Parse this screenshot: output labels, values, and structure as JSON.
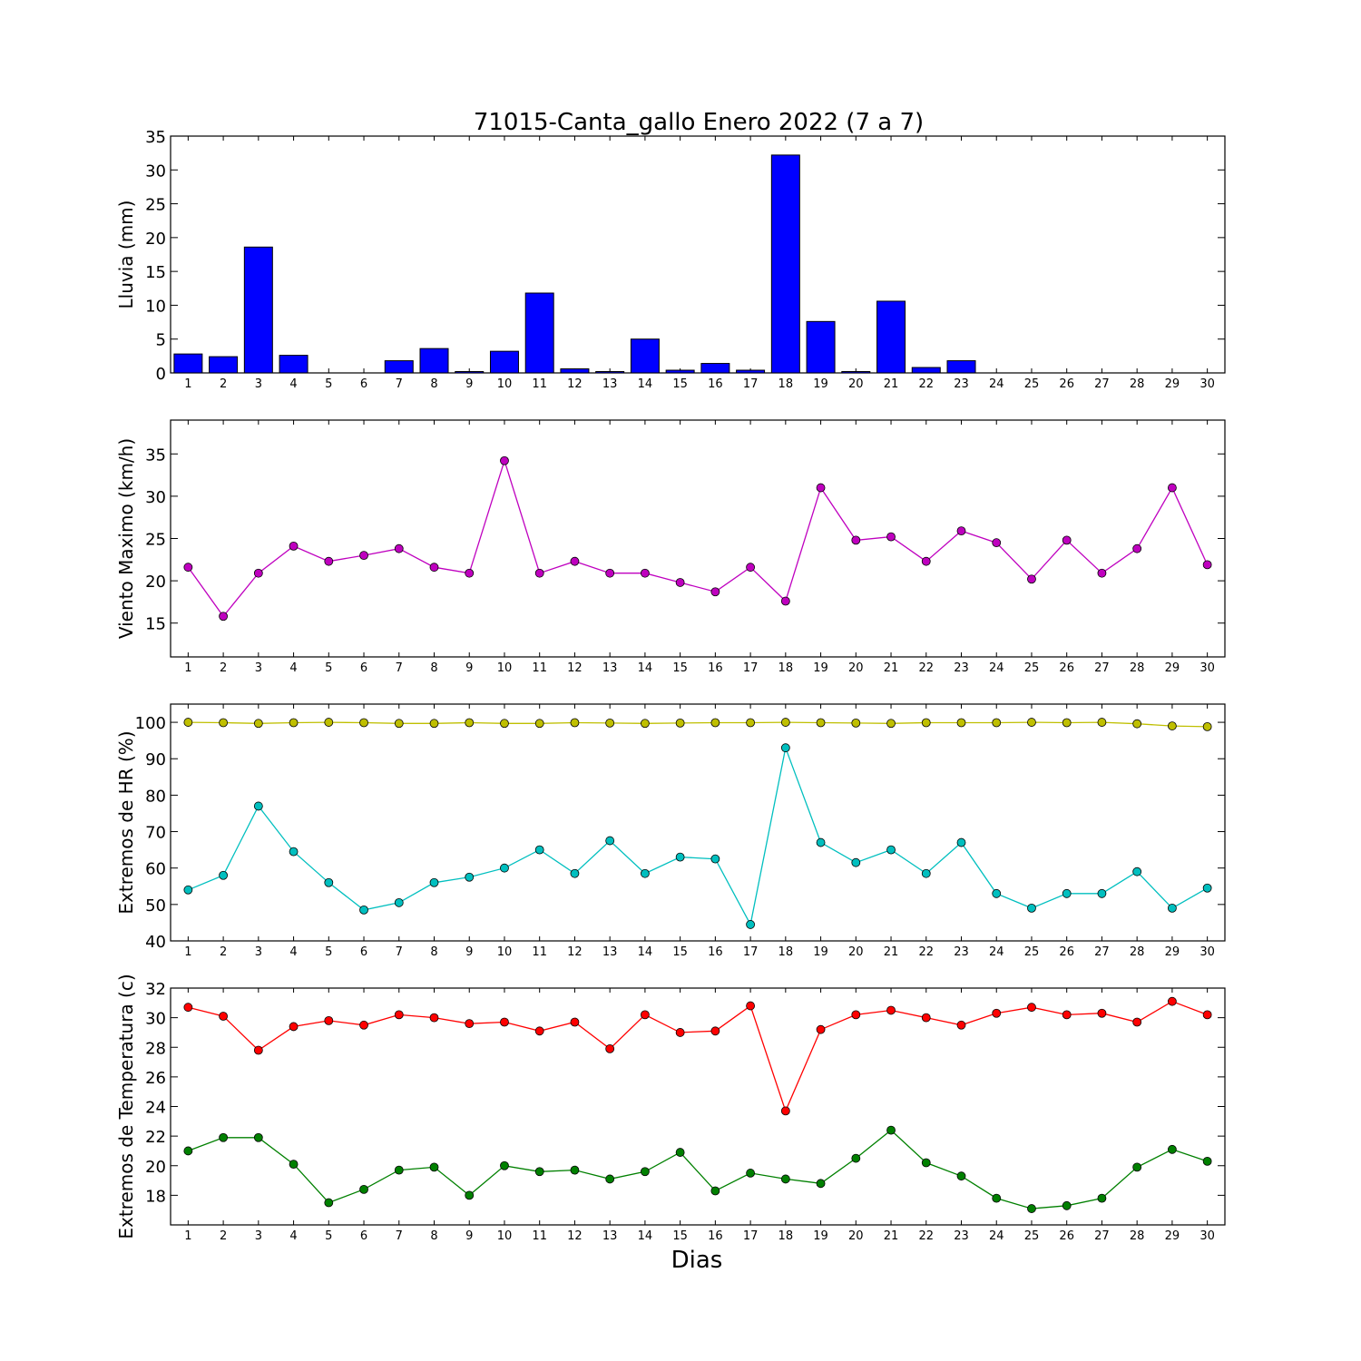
{
  "figure": {
    "title": "71015-Canta_gallo Enero 2022  (7 a 7)",
    "xlabel": "Dias"
  },
  "chart_data": [
    {
      "type": "bar",
      "ylabel": "Lluvia (mm)",
      "ylim": [
        0,
        35
      ],
      "yticks": [
        0,
        5,
        10,
        15,
        20,
        25,
        30,
        35
      ],
      "x": [
        1,
        2,
        3,
        4,
        5,
        6,
        7,
        8,
        9,
        10,
        11,
        12,
        13,
        14,
        15,
        16,
        17,
        18,
        19,
        20,
        21,
        22,
        23,
        24,
        25,
        26,
        27,
        28,
        29,
        30
      ],
      "series": [
        {
          "color": "#0000ff",
          "values": [
            2.8,
            2.4,
            18.6,
            2.6,
            0,
            0,
            1.8,
            3.6,
            0.2,
            3.2,
            11.8,
            0.6,
            0.2,
            5.0,
            0.4,
            1.4,
            0.4,
            32.2,
            7.6,
            0.2,
            10.6,
            0.8,
            1.8,
            0,
            0,
            0,
            0,
            0,
            0,
            0
          ]
        }
      ]
    },
    {
      "type": "line",
      "ylabel": "Viento Maximo (km/h)",
      "ylim": [
        11,
        39
      ],
      "yticks": [
        15,
        20,
        25,
        30,
        35
      ],
      "x": [
        1,
        2,
        3,
        4,
        5,
        6,
        7,
        8,
        9,
        10,
        11,
        12,
        13,
        14,
        15,
        16,
        17,
        18,
        19,
        20,
        21,
        22,
        23,
        24,
        25,
        26,
        27,
        28,
        29,
        30
      ],
      "series": [
        {
          "color": "#bf00bf",
          "values": [
            21.6,
            15.8,
            20.9,
            24.1,
            22.3,
            23.0,
            23.8,
            21.6,
            20.9,
            34.2,
            20.9,
            22.3,
            20.9,
            20.9,
            19.8,
            18.7,
            21.6,
            17.6,
            31.0,
            24.8,
            25.2,
            22.3,
            25.9,
            24.5,
            20.2,
            24.8,
            20.9,
            23.8,
            31.0,
            21.9
          ]
        }
      ]
    },
    {
      "type": "line",
      "ylabel": "Extremos de HR (%)",
      "ylim": [
        40,
        105
      ],
      "yticks": [
        40,
        50,
        60,
        70,
        80,
        90,
        100
      ],
      "x": [
        1,
        2,
        3,
        4,
        5,
        6,
        7,
        8,
        9,
        10,
        11,
        12,
        13,
        14,
        15,
        16,
        17,
        18,
        19,
        20,
        21,
        22,
        23,
        24,
        25,
        26,
        27,
        28,
        29,
        30
      ],
      "series": [
        {
          "color": "#bfbf00",
          "values": [
            100,
            99.9,
            99.7,
            99.9,
            100,
            99.9,
            99.7,
            99.7,
            99.9,
            99.7,
            99.7,
            99.9,
            99.8,
            99.7,
            99.8,
            99.9,
            99.9,
            100,
            99.9,
            99.8,
            99.7,
            99.9,
            99.9,
            99.9,
            100,
            99.9,
            100,
            99.6,
            99.0,
            98.8
          ]
        },
        {
          "color": "#00bfbf",
          "values": [
            54,
            58,
            77,
            64.5,
            56,
            48.5,
            50.5,
            56,
            57.5,
            60,
            65,
            58.5,
            67.5,
            58.5,
            63,
            62.5,
            44.5,
            93,
            67,
            61.5,
            65,
            58.5,
            67,
            53,
            49,
            53,
            53,
            59,
            49,
            54.5
          ]
        }
      ]
    },
    {
      "type": "line",
      "ylabel": "Extremos de Temperatura (c)",
      "ylim": [
        16,
        32
      ],
      "yticks": [
        18,
        20,
        22,
        24,
        26,
        28,
        30,
        32
      ],
      "x": [
        1,
        2,
        3,
        4,
        5,
        6,
        7,
        8,
        9,
        10,
        11,
        12,
        13,
        14,
        15,
        16,
        17,
        18,
        19,
        20,
        21,
        22,
        23,
        24,
        25,
        26,
        27,
        28,
        29,
        30
      ],
      "series": [
        {
          "color": "#ff0000",
          "values": [
            30.7,
            30.1,
            27.8,
            29.4,
            29.8,
            29.5,
            30.2,
            30.0,
            29.6,
            29.7,
            29.1,
            29.7,
            27.9,
            30.2,
            29.0,
            29.1,
            30.8,
            23.7,
            29.2,
            30.2,
            30.5,
            30.0,
            29.5,
            30.3,
            30.7,
            30.2,
            30.3,
            29.7,
            31.1,
            30.2
          ]
        },
        {
          "color": "#008000",
          "values": [
            21.0,
            21.9,
            21.9,
            20.1,
            17.5,
            18.4,
            19.7,
            19.9,
            18.0,
            20.0,
            19.6,
            19.7,
            19.1,
            19.6,
            20.9,
            18.3,
            19.5,
            19.1,
            18.8,
            20.5,
            22.4,
            20.2,
            19.3,
            17.8,
            17.1,
            17.3,
            17.8,
            19.9,
            21.1,
            20.3
          ]
        }
      ]
    }
  ]
}
